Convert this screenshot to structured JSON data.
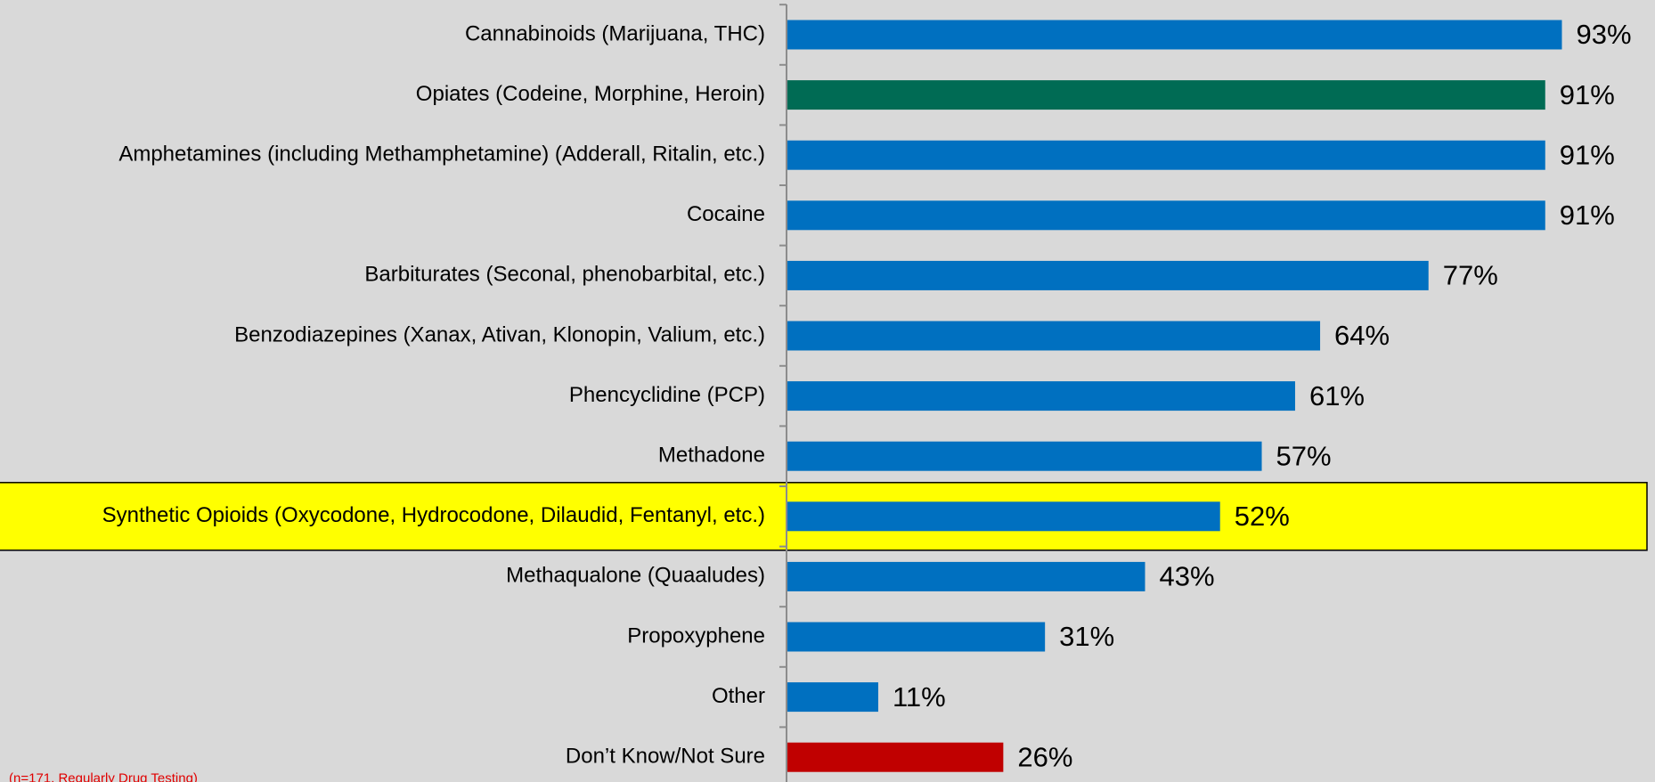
{
  "chart_data": {
    "type": "bar",
    "orientation": "horizontal",
    "categories": [
      "Cannabinoids (Marijuana, THC)",
      "Opiates (Codeine, Morphine, Heroin)",
      "Amphetamines (including Methamphetamine) (Adderall, Ritalin, etc.)",
      "Cocaine",
      "Barbiturates (Seconal, phenobarbital, etc.)",
      "Benzodiazepines (Xanax, Ativan, Klonopin, Valium, etc.)",
      "Phencyclidine (PCP)",
      "Methadone",
      "Synthetic Opioids (Oxycodone, Hydrocodone, Dilaudid, Fentanyl, etc.)",
      "Methaqualone (Quaaludes)",
      "Propoxyphene",
      "Other",
      "Don’t Know/Not Sure"
    ],
    "values": [
      93,
      91,
      91,
      91,
      77,
      64,
      61,
      57,
      52,
      43,
      31,
      11,
      26
    ],
    "value_labels": [
      "93%",
      "91%",
      "91%",
      "91%",
      "77%",
      "64%",
      "61%",
      "57%",
      "52%",
      "43%",
      "31%",
      "11%",
      "26%"
    ],
    "colors": [
      "#0070c0",
      "#006b54",
      "#0070c0",
      "#0070c0",
      "#0070c0",
      "#0070c0",
      "#0070c0",
      "#0070c0",
      "#0070c0",
      "#0070c0",
      "#0070c0",
      "#0070c0",
      "#c00000"
    ],
    "highlight_category": 8,
    "highlight_color": "#ffff00",
    "xlim": [
      0,
      100
    ],
    "footnote": "(n=171, Regularly Drug Testing)"
  }
}
